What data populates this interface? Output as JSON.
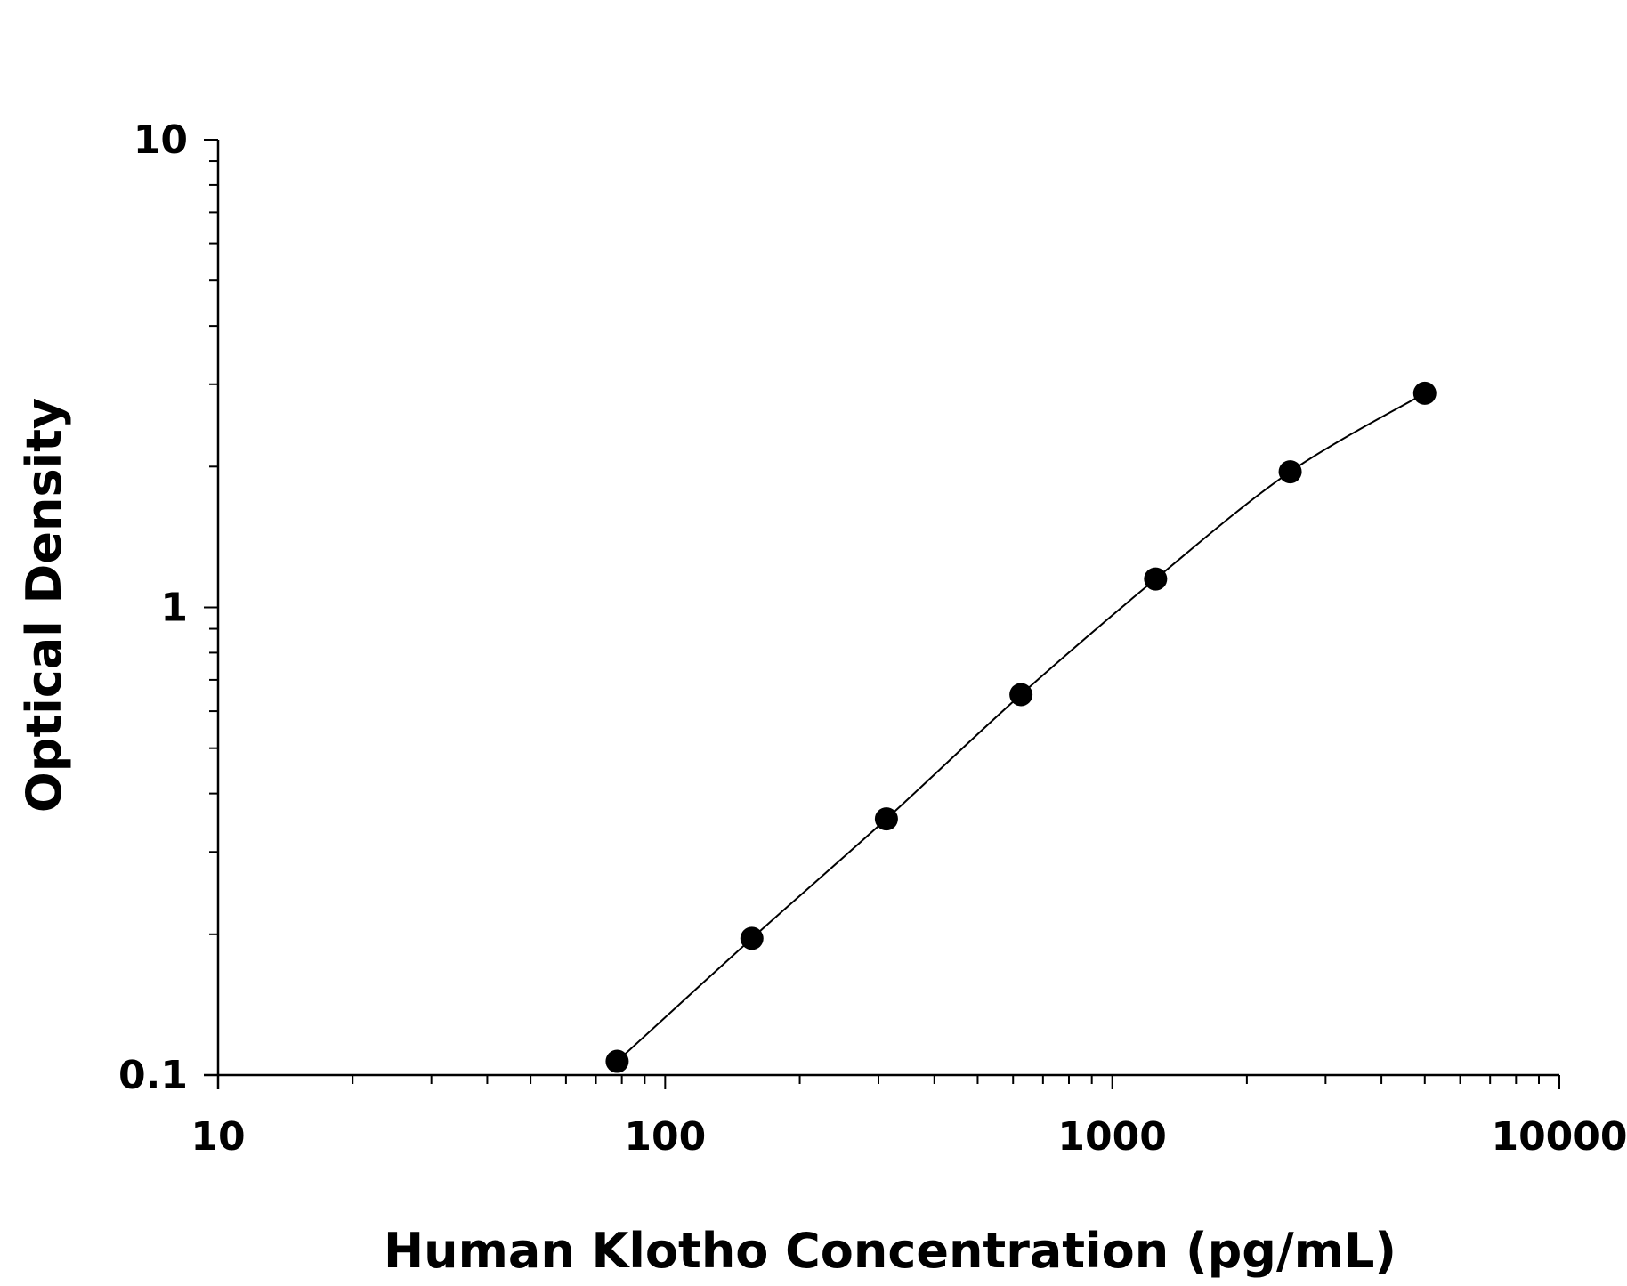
{
  "chart_data": {
    "type": "scatter",
    "title": "",
    "xlabel": "Human Klotho Concentration (pg/mL)",
    "ylabel": "Optical Density",
    "x_scale": "log",
    "y_scale": "log",
    "xlim": [
      10,
      10000
    ],
    "ylim": [
      0.1,
      10
    ],
    "x_tick_labels": [
      "10",
      "100",
      "1000",
      "10000"
    ],
    "y_tick_labels": [
      "0.1",
      "1",
      "10"
    ],
    "grid": false,
    "legend": "none",
    "marker_color": "#000000",
    "series": [
      {
        "x": [
          78.1,
          156.3,
          312.5,
          625,
          1250,
          2500,
          5000
        ],
        "y": [
          0.107,
          0.196,
          0.353,
          0.651,
          1.15,
          1.95,
          2.87
        ],
        "fit_curve": true
      }
    ]
  }
}
